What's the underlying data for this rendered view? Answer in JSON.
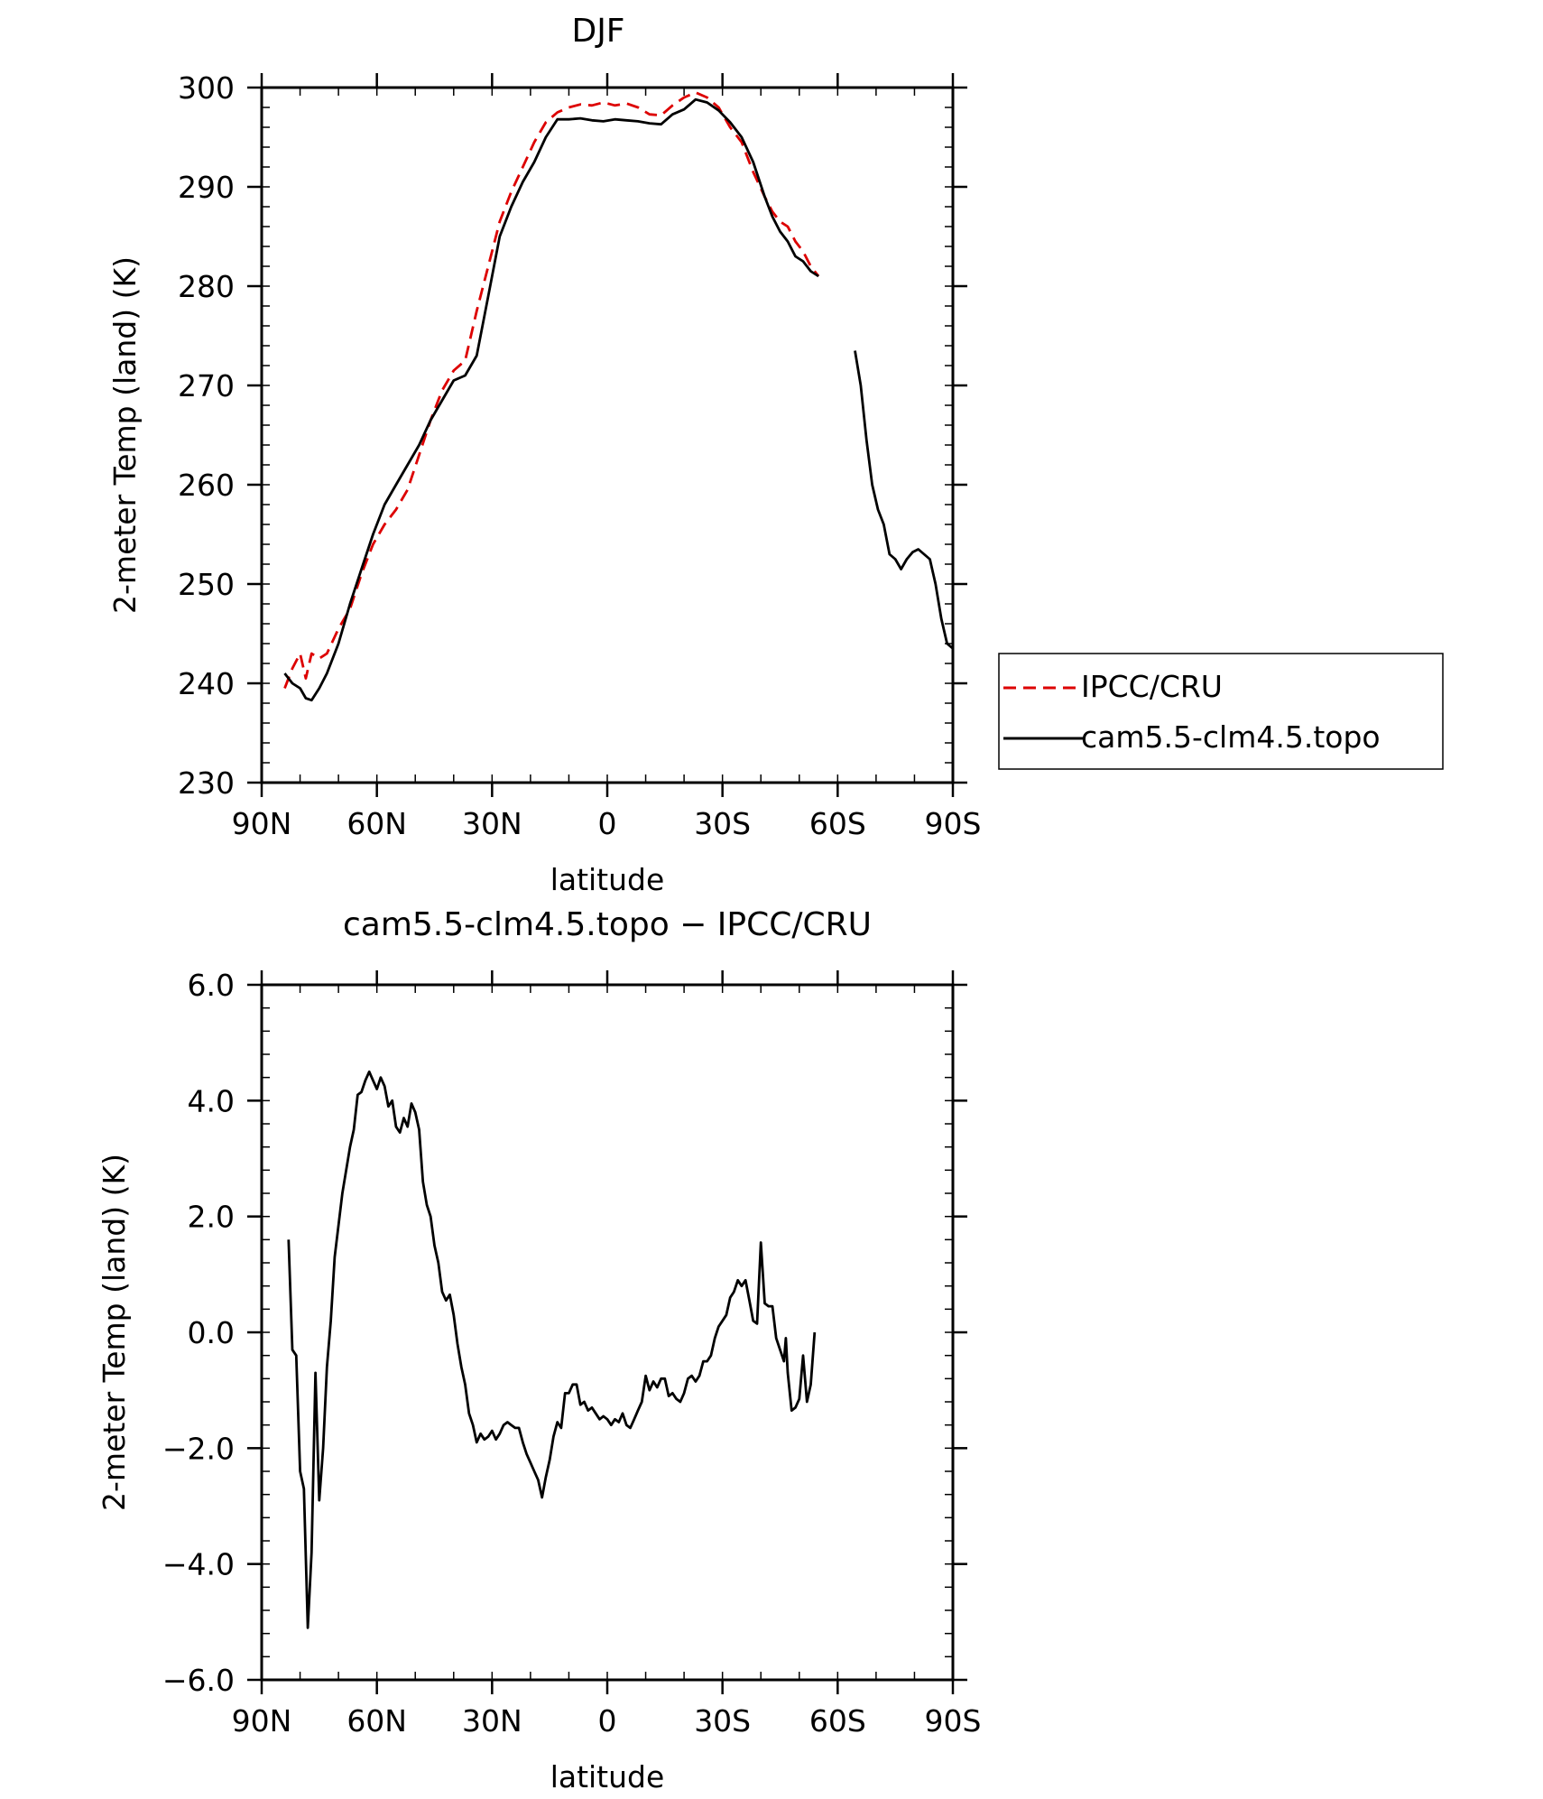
{
  "chart_data": [
    {
      "type": "line",
      "title": "DJF",
      "xlabel": "latitude",
      "ylabel": "2-meter Temp (land) (K)",
      "xlim": [
        90,
        -90
      ],
      "ylim": [
        230,
        300
      ],
      "xticks": [
        90,
        60,
        30,
        0,
        -30,
        -60,
        -90
      ],
      "xticklabels": [
        "90N",
        "60N",
        "30N",
        "0",
        "30S",
        "60S",
        "90S"
      ],
      "yticks": [
        230,
        240,
        250,
        260,
        270,
        280,
        290,
        300
      ],
      "yticklabels": [
        "230",
        "240",
        "250",
        "260",
        "270",
        "280",
        "290",
        "300"
      ],
      "legend_position": "right",
      "series": [
        {
          "name": "IPCC/CRU",
          "color": "#dd0000",
          "style": "dashed",
          "points": [
            [
              84,
              239.5
            ],
            [
              82,
              241.5
            ],
            [
              80,
              243
            ],
            [
              78.5,
              240.5
            ],
            [
              77,
              243
            ],
            [
              75,
              242.5
            ],
            [
              73,
              243
            ],
            [
              70,
              245.5
            ],
            [
              67,
              247.5
            ],
            [
              64,
              251
            ],
            [
              61,
              254
            ],
            [
              58,
              256
            ],
            [
              55,
              257.5
            ],
            [
              52,
              259.5
            ],
            [
              49,
              263
            ],
            [
              46,
              266.5
            ],
            [
              43,
              269.5
            ],
            [
              40,
              271.5
            ],
            [
              37,
              272.5
            ],
            [
              34,
              277.5
            ],
            [
              31,
              282
            ],
            [
              28,
              286.5
            ],
            [
              25,
              289.5
            ],
            [
              22,
              292
            ],
            [
              19,
              294.5
            ],
            [
              16,
              296.5
            ],
            [
              13,
              297.5
            ],
            [
              10,
              298
            ],
            [
              7,
              298.3
            ],
            [
              4,
              298.2
            ],
            [
              1,
              298.5
            ],
            [
              -2,
              298.2
            ],
            [
              -5,
              298.4
            ],
            [
              -8,
              298
            ],
            [
              -11,
              297.3
            ],
            [
              -14,
              297.2
            ],
            [
              -17,
              298.2
            ],
            [
              -20,
              299
            ],
            [
              -23,
              299.5
            ],
            [
              -26,
              299
            ],
            [
              -29,
              298
            ],
            [
              -32,
              296
            ],
            [
              -35,
              294.5
            ],
            [
              -38,
              291.5
            ],
            [
              -41,
              289
            ],
            [
              -43,
              287.5
            ],
            [
              -45,
              286.5
            ],
            [
              -47,
              286
            ],
            [
              -49,
              284.5
            ],
            [
              -51,
              283.5
            ],
            [
              -53,
              282
            ],
            [
              -55,
              281
            ]
          ]
        },
        {
          "name": "cam5.5-clm4.5.topo",
          "color": "#000000",
          "style": "solid",
          "points": [
            [
              84,
              241
            ],
            [
              82,
              240
            ],
            [
              80,
              239.5
            ],
            [
              78.5,
              238.5
            ],
            [
              77,
              238.3
            ],
            [
              75,
              239.5
            ],
            [
              73,
              241
            ],
            [
              70,
              244
            ],
            [
              67,
              248
            ],
            [
              64,
              251.5
            ],
            [
              61,
              255
            ],
            [
              58,
              258
            ],
            [
              55,
              260
            ],
            [
              52,
              262
            ],
            [
              49,
              264
            ],
            [
              46,
              266.5
            ],
            [
              43,
              268.5
            ],
            [
              40,
              270.5
            ],
            [
              37,
              271
            ],
            [
              34,
              273
            ],
            [
              31,
              279
            ],
            [
              28,
              285
            ],
            [
              25,
              288
            ],
            [
              22,
              290.5
            ],
            [
              19,
              292.5
            ],
            [
              16,
              295
            ],
            [
              13,
              296.8
            ],
            [
              10,
              296.8
            ],
            [
              7,
              296.9
            ],
            [
              4,
              296.7
            ],
            [
              1,
              296.6
            ],
            [
              -2,
              296.8
            ],
            [
              -5,
              296.7
            ],
            [
              -8,
              296.6
            ],
            [
              -11,
              296.4
            ],
            [
              -14,
              296.3
            ],
            [
              -17,
              297.3
            ],
            [
              -20,
              297.8
            ],
            [
              -23,
              298.8
            ],
            [
              -26,
              298.5
            ],
            [
              -29,
              297.7
            ],
            [
              -32,
              296.5
            ],
            [
              -35,
              295
            ],
            [
              -38,
              292.5
            ],
            [
              -41,
              289
            ],
            [
              -43,
              287
            ],
            [
              -45,
              285.5
            ],
            [
              -47,
              284.5
            ],
            [
              -49,
              283
            ],
            [
              -51,
              282.5
            ],
            [
              -53,
              281.5
            ],
            [
              -55,
              281
            ]
          ],
          "points_south": [
            [
              -64.5,
              273.5
            ],
            [
              -66,
              270
            ],
            [
              -67.5,
              264.5
            ],
            [
              -69,
              260
            ],
            [
              -70.5,
              257.5
            ],
            [
              -72,
              256
            ],
            [
              -73.5,
              253
            ],
            [
              -75,
              252.5
            ],
            [
              -76.5,
              251.5
            ],
            [
              -78,
              252.5
            ],
            [
              -79.5,
              253.2
            ],
            [
              -81,
              253.5
            ],
            [
              -82.5,
              253
            ],
            [
              -84,
              252.5
            ],
            [
              -85.5,
              250
            ],
            [
              -87,
              246.5
            ],
            [
              -88.5,
              244
            ],
            [
              -90,
              243.5
            ]
          ]
        }
      ]
    },
    {
      "type": "line",
      "title": "cam5.5-clm4.5.topo − IPCC/CRU",
      "xlabel": "latitude",
      "ylabel": "2-meter Temp (land) (K)",
      "xlim": [
        90,
        -90
      ],
      "ylim": [
        -6,
        6
      ],
      "xticks": [
        90,
        60,
        30,
        0,
        -30,
        -60,
        -90
      ],
      "xticklabels": [
        "90N",
        "60N",
        "30N",
        "0",
        "30S",
        "60S",
        "90S"
      ],
      "yticks": [
        -6,
        -4,
        -2,
        0,
        2,
        4,
        6
      ],
      "yticklabels": [
        "−6.0",
        "−4.0",
        "−2.0",
        "0.0",
        "2.0",
        "4.0",
        "6.0"
      ],
      "series": [
        {
          "color": "#000000",
          "style": "solid",
          "points": [
            [
              83,
              1.6
            ],
            [
              82,
              -0.3
            ],
            [
              81,
              -0.4
            ],
            [
              80,
              -2.4
            ],
            [
              79,
              -2.7
            ],
            [
              78,
              -5.1
            ],
            [
              77,
              -3.8
            ],
            [
              76,
              -0.7
            ],
            [
              75,
              -2.9
            ],
            [
              74,
              -2
            ],
            [
              73,
              -0.6
            ],
            [
              72,
              0.2
            ],
            [
              71,
              1.3
            ],
            [
              69,
              2.4
            ],
            [
              67,
              3.2
            ],
            [
              66,
              3.5
            ],
            [
              65,
              4.1
            ],
            [
              64,
              4.15
            ],
            [
              63,
              4.35
            ],
            [
              62,
              4.5
            ],
            [
              61,
              4.35
            ],
            [
              60,
              4.2
            ],
            [
              59,
              4.4
            ],
            [
              58,
              4.25
            ],
            [
              57,
              3.9
            ],
            [
              56,
              4
            ],
            [
              55,
              3.55
            ],
            [
              54,
              3.45
            ],
            [
              53,
              3.7
            ],
            [
              52,
              3.55
            ],
            [
              51,
              3.95
            ],
            [
              50,
              3.8
            ],
            [
              49,
              3.5
            ],
            [
              48,
              2.6
            ],
            [
              47,
              2.2
            ],
            [
              46,
              2
            ],
            [
              45,
              1.5
            ],
            [
              44,
              1.2
            ],
            [
              43,
              0.7
            ],
            [
              42,
              0.55
            ],
            [
              41,
              0.65
            ],
            [
              40,
              0.3
            ],
            [
              39,
              -0.2
            ],
            [
              38,
              -0.6
            ],
            [
              37,
              -0.9
            ],
            [
              36,
              -1.4
            ],
            [
              35,
              -1.6
            ],
            [
              34,
              -1.9
            ],
            [
              33,
              -1.75
            ],
            [
              32,
              -1.85
            ],
            [
              31,
              -1.8
            ],
            [
              30,
              -1.7
            ],
            [
              29,
              -1.85
            ],
            [
              28,
              -1.75
            ],
            [
              27,
              -1.6
            ],
            [
              26,
              -1.55
            ],
            [
              25,
              -1.6
            ],
            [
              24,
              -1.65
            ],
            [
              23,
              -1.65
            ],
            [
              22,
              -1.9
            ],
            [
              21,
              -2.1
            ],
            [
              20,
              -2.25
            ],
            [
              19,
              -2.4
            ],
            [
              18,
              -2.55
            ],
            [
              17,
              -2.85
            ],
            [
              16,
              -2.5
            ],
            [
              15,
              -2.2
            ],
            [
              14,
              -1.8
            ],
            [
              13,
              -1.55
            ],
            [
              12,
              -1.65
            ],
            [
              11,
              -1.05
            ],
            [
              10,
              -1.05
            ],
            [
              9,
              -0.9
            ],
            [
              8,
              -0.9
            ],
            [
              7,
              -1.25
            ],
            [
              6,
              -1.2
            ],
            [
              5,
              -1.35
            ],
            [
              4,
              -1.3
            ],
            [
              3,
              -1.4
            ],
            [
              2,
              -1.5
            ],
            [
              1,
              -1.45
            ],
            [
              0,
              -1.5
            ],
            [
              -1,
              -1.6
            ],
            [
              -2,
              -1.5
            ],
            [
              -3,
              -1.55
            ],
            [
              -4,
              -1.4
            ],
            [
              -5,
              -1.6
            ],
            [
              -6,
              -1.65
            ],
            [
              -7,
              -1.5
            ],
            [
              -8,
              -1.35
            ],
            [
              -9,
              -1.2
            ],
            [
              -10,
              -0.75
            ],
            [
              -11,
              -1
            ],
            [
              -12,
              -0.85
            ],
            [
              -13,
              -0.95
            ],
            [
              -14,
              -0.8
            ],
            [
              -15,
              -0.8
            ],
            [
              -16,
              -1.1
            ],
            [
              -17,
              -1.05
            ],
            [
              -18,
              -1.15
            ],
            [
              -19,
              -1.2
            ],
            [
              -20,
              -1.05
            ],
            [
              -21,
              -0.8
            ],
            [
              -22,
              -0.75
            ],
            [
              -23,
              -0.85
            ],
            [
              -24,
              -0.75
            ],
            [
              -25,
              -0.5
            ],
            [
              -26,
              -0.5
            ],
            [
              -27,
              -0.4
            ],
            [
              -28,
              -0.1
            ],
            [
              -29,
              0.1
            ],
            [
              -30,
              0.2
            ],
            [
              -31,
              0.3
            ],
            [
              -32,
              0.6
            ],
            [
              -33,
              0.7
            ],
            [
              -34,
              0.9
            ],
            [
              -35,
              0.8
            ],
            [
              -36,
              0.9
            ],
            [
              -37,
              0.55
            ],
            [
              -38,
              0.2
            ],
            [
              -39,
              0.15
            ],
            [
              -40,
              1.55
            ],
            [
              -41,
              0.5
            ],
            [
              -42,
              0.45
            ],
            [
              -43,
              0.45
            ],
            [
              -44,
              -0.1
            ],
            [
              -45,
              -0.3
            ],
            [
              -46,
              -0.5
            ],
            [
              -46.5,
              -0.1
            ],
            [
              -47,
              -0.7
            ],
            [
              -48,
              -1.35
            ],
            [
              -49,
              -1.3
            ],
            [
              -50,
              -1.15
            ],
            [
              -51,
              -0.4
            ],
            [
              -52,
              -1.2
            ],
            [
              -53,
              -0.9
            ],
            [
              -54,
              0
            ]
          ]
        }
      ]
    }
  ]
}
